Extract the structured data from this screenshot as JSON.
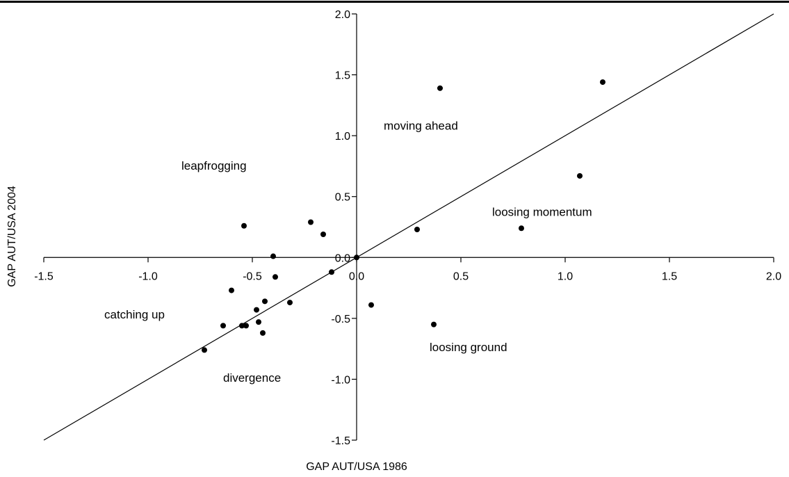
{
  "chart_data": {
    "type": "scatter",
    "xlabel": "GAP AUT/USA 1986",
    "ylabel": "GAP AUT/USA 2004",
    "xlim": [
      -1.5,
      2.0
    ],
    "ylim": [
      -1.5,
      2.0
    ],
    "x_ticks": [
      "-1.5",
      "-1.0",
      "-0.5",
      "0.0",
      "0.5",
      "1.0",
      "1.5",
      "2.0"
    ],
    "y_ticks": [
      "2.0",
      "1.5",
      "1.0",
      "0.5",
      "0.0",
      "-0.5",
      "-1.0",
      "-1.5"
    ],
    "reference_line": {
      "from": [
        -1.5,
        -1.5
      ],
      "to": [
        2.0,
        2.0
      ]
    },
    "annotations": [
      {
        "text": "moving ahead",
        "x": 0.13,
        "y": 1.05
      },
      {
        "text": "leapfrogging",
        "x": -0.84,
        "y": 0.72
      },
      {
        "text": "loosing momentum",
        "x": 0.65,
        "y": 0.34
      },
      {
        "text": "catching up",
        "x": -1.21,
        "y": -0.5
      },
      {
        "text": "loosing ground",
        "x": 0.35,
        "y": -0.77
      },
      {
        "text": "divergence",
        "x": -0.64,
        "y": -1.02
      }
    ],
    "points": [
      {
        "x": 0.4,
        "y": 1.39
      },
      {
        "x": 1.18,
        "y": 1.44
      },
      {
        "x": 1.07,
        "y": 0.67
      },
      {
        "x": 0.79,
        "y": 0.24
      },
      {
        "x": 0.29,
        "y": 0.23
      },
      {
        "x": -0.54,
        "y": 0.26
      },
      {
        "x": -0.22,
        "y": 0.29
      },
      {
        "x": -0.16,
        "y": 0.19
      },
      {
        "x": -0.4,
        "y": 0.01
      },
      {
        "x": 0.0,
        "y": 0.0
      },
      {
        "x": -0.39,
        "y": -0.16
      },
      {
        "x": -0.12,
        "y": -0.12
      },
      {
        "x": -0.6,
        "y": -0.27
      },
      {
        "x": -0.44,
        "y": -0.36
      },
      {
        "x": -0.32,
        "y": -0.37
      },
      {
        "x": 0.07,
        "y": -0.39
      },
      {
        "x": -0.48,
        "y": -0.43
      },
      {
        "x": -0.47,
        "y": -0.53
      },
      {
        "x": -0.55,
        "y": -0.56
      },
      {
        "x": -0.53,
        "y": -0.56
      },
      {
        "x": -0.64,
        "y": -0.56
      },
      {
        "x": 0.37,
        "y": -0.55
      },
      {
        "x": -0.45,
        "y": -0.62
      },
      {
        "x": -0.73,
        "y": -0.76
      }
    ]
  }
}
